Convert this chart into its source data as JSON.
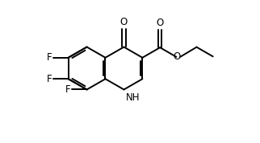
{
  "bg_color": "#ffffff",
  "bond_color": "#000000",
  "bond_width": 1.4,
  "font_size": 8.5,
  "fig_width": 3.22,
  "fig_height": 1.78,
  "dpi": 100,
  "xlim": [
    -0.3,
    2.5
  ],
  "ylim": [
    -1.1,
    1.1
  ],
  "s": 0.33
}
